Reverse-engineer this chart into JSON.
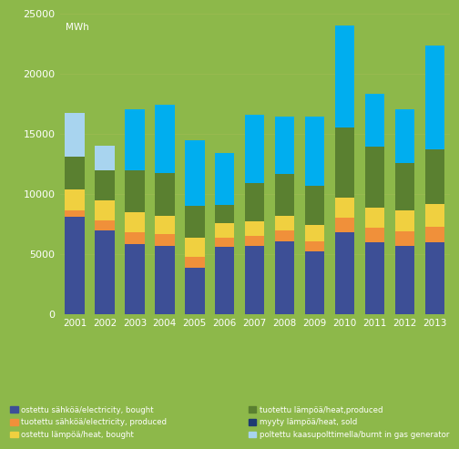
{
  "years": [
    2001,
    2002,
    2003,
    2004,
    2005,
    2006,
    2007,
    2008,
    2009,
    2010,
    2011,
    2012,
    2013
  ],
  "segments": {
    "electricity_bought": [
      8100,
      7000,
      5800,
      5700,
      3900,
      5600,
      5700,
      6100,
      5200,
      6800,
      6000,
      5700,
      6000
    ],
    "electricity_produced": [
      500,
      800,
      1000,
      950,
      900,
      800,
      800,
      900,
      900,
      1200,
      1200,
      1200,
      1300
    ],
    "heat_bought": [
      1800,
      1700,
      1700,
      1500,
      1600,
      1200,
      1200,
      1200,
      1300,
      1700,
      1700,
      1700,
      1900
    ],
    "heat_produced": [
      2700,
      2500,
      3500,
      3600,
      2600,
      1500,
      3200,
      3500,
      3300,
      5800,
      5000,
      4000,
      4500
    ],
    "heat_sold": [
      0,
      0,
      0,
      0,
      0,
      0,
      0,
      0,
      0,
      0,
      0,
      0,
      0
    ],
    "gas_generator_cyan": [
      0,
      0,
      5000,
      5700,
      5500,
      4300,
      5700,
      4700,
      5700,
      8500,
      4400,
      4400,
      8600
    ],
    "gas_generator_lblue": [
      3600,
      2000,
      0,
      0,
      0,
      0,
      0,
      0,
      0,
      0,
      0,
      0,
      0
    ]
  },
  "colors": {
    "electricity_bought": "#3d4f96",
    "electricity_produced": "#f0903a",
    "heat_bought": "#f0d040",
    "heat_produced": "#5a8030",
    "heat_sold": "#1e3a72",
    "gas_generator_cyan": "#00aeef",
    "gas_generator_lblue": "#a8d4ef"
  },
  "bg_color": "#8db84a",
  "ylim": [
    0,
    25000
  ],
  "yticks": [
    0,
    5000,
    10000,
    15000,
    20000,
    25000
  ],
  "ylabel": "MWh",
  "bar_width": 0.65,
  "legend_left": [
    {
      "label": "ostettu sähköä/electricity, bought",
      "color": "#3d4f96"
    },
    {
      "label": "tuotettu sähköä/electricity, produced",
      "color": "#f0903a"
    },
    {
      "label": "ostettu lämpöä/heat, bought",
      "color": "#f0d040"
    }
  ],
  "legend_right": [
    {
      "label": "tuotettu lämpöä/heat,produced",
      "color": "#5a8030"
    },
    {
      "label": "myyty lämpöä/heat, sold",
      "color": "#1e3a72"
    },
    {
      "label": "poltettu kaasupolttimella/burnt in gas generator",
      "color": "#a8d4ef"
    }
  ]
}
